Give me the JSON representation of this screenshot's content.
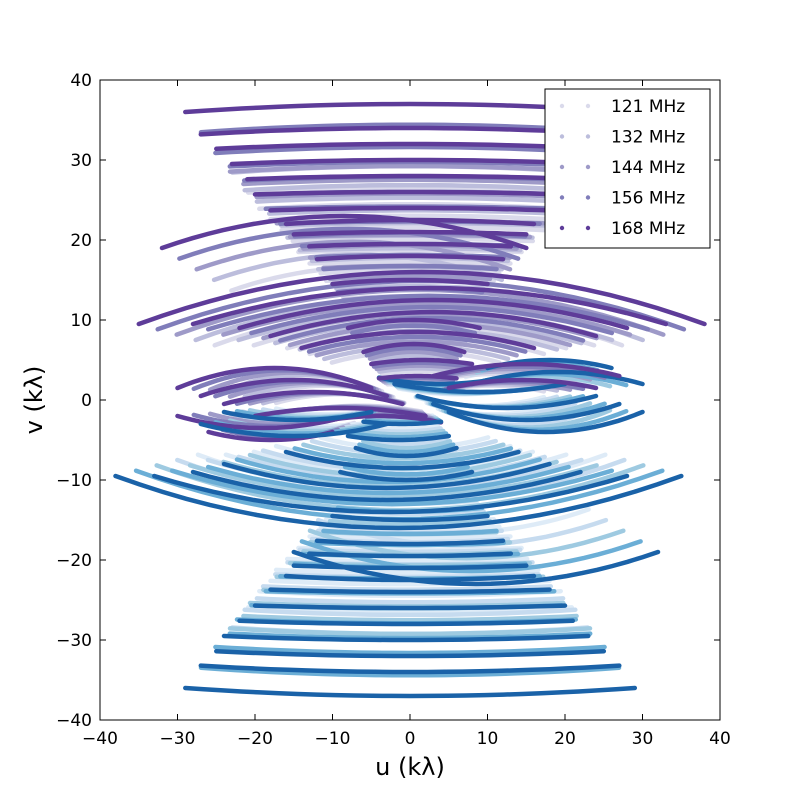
{
  "chart_data": {
    "type": "scatter",
    "xlabel": "u (kλ)",
    "ylabel": "v (kλ)",
    "xlim": [
      -40,
      40
    ],
    "ylim": [
      -40,
      40
    ],
    "xticks": [
      -40,
      -30,
      -20,
      -10,
      0,
      10,
      20,
      30,
      40
    ],
    "yticks": [
      -40,
      -30,
      -20,
      -10,
      0,
      10,
      20,
      30,
      40
    ],
    "grid": false,
    "legend_position": "top-right",
    "series": [
      {
        "name": "121 MHz",
        "color": "#dadaeb",
        "mirror_color": "#deebf7",
        "scale": 0.72
      },
      {
        "name": "132 MHz",
        "color": "#bcbddc",
        "mirror_color": "#c6dbef",
        "scale": 0.79
      },
      {
        "name": "144 MHz",
        "color": "#9e9ac8",
        "mirror_color": "#9ecae1",
        "scale": 0.86
      },
      {
        "name": "156 MHz",
        "color": "#807dba",
        "mirror_color": "#6baed6",
        "scale": 0.93
      },
      {
        "name": "168 MHz",
        "color": "#5e3c99",
        "mirror_color": "#1a62a8",
        "scale": 1.0
      }
    ],
    "tracks_168MHz": [
      {
        "x0": -29,
        "x1": 29,
        "y": 37,
        "curv": 1.0
      },
      {
        "x0": -27,
        "x1": 27,
        "y": 34,
        "curv": 0.8
      },
      {
        "x0": -25,
        "x1": 25,
        "y": 32,
        "curv": 0.6
      },
      {
        "x0": -23,
        "x1": 24,
        "y": 30,
        "curv": 0.5
      },
      {
        "x0": -21,
        "x1": 22,
        "y": 28,
        "curv": 0.4
      },
      {
        "x0": -20,
        "x1": 20,
        "y": 26,
        "curv": 0.3
      },
      {
        "x0": -18,
        "x1": 18,
        "y": 24,
        "curv": 0.3
      },
      {
        "x0": -16,
        "x1": 16,
        "y": 22.5,
        "curv": 0.5
      },
      {
        "x0": -32,
        "x1": 15,
        "y": 23,
        "curv": 4.0
      },
      {
        "x0": -15,
        "x1": 15,
        "y": 21,
        "curv": 0.3
      },
      {
        "x0": -13,
        "x1": 13,
        "y": 19.5,
        "curv": 0.3
      },
      {
        "x0": -35,
        "x1": 38,
        "y": 16,
        "curv": 6.5
      },
      {
        "x0": -12,
        "x1": 12,
        "y": 18,
        "curv": 0.4
      },
      {
        "x0": -28,
        "x1": 33,
        "y": 14,
        "curv": 4.5
      },
      {
        "x0": -22,
        "x1": 28,
        "y": 12.5,
        "curv": 3.5
      },
      {
        "x0": -10,
        "x1": 10,
        "y": 15,
        "curv": 0.5
      },
      {
        "x0": -18,
        "x1": 24,
        "y": 11,
        "curv": 3.0
      },
      {
        "x0": -8,
        "x1": 9,
        "y": 10,
        "curv": 1.0
      },
      {
        "x0": -14,
        "x1": 16,
        "y": 8.5,
        "curv": 2.0
      },
      {
        "x0": -6,
        "x1": 7,
        "y": 7,
        "curv": 1.0
      },
      {
        "x0": -30,
        "x1": -5,
        "y": 4,
        "curv": 2.5
      },
      {
        "x0": -27,
        "x1": -3,
        "y": 2.5,
        "curv": 2.0
      },
      {
        "x0": -24,
        "x1": -1,
        "y": 1,
        "curv": 1.5
      },
      {
        "x0": -20,
        "x1": 2,
        "y": -1,
        "curv": 1.0
      },
      {
        "x0": -30,
        "x1": -8,
        "y": -3.5,
        "curv": -1.5
      },
      {
        "x0": -26,
        "x1": -10,
        "y": -5,
        "curv": -1.0
      },
      {
        "x0": -12,
        "x1": 4,
        "y": -2,
        "curv": 0.8
      },
      {
        "x0": 3,
        "x1": 27,
        "y": 4.5,
        "curv": 1.5
      },
      {
        "x0": 5,
        "x1": 24,
        "y": 2.5,
        "curv": 1.0
      },
      {
        "x0": -5,
        "x1": 8,
        "y": 5,
        "curv": 0.5
      },
      {
        "x0": -4,
        "x1": 6,
        "y": 3,
        "curv": 0.3
      }
    ]
  }
}
